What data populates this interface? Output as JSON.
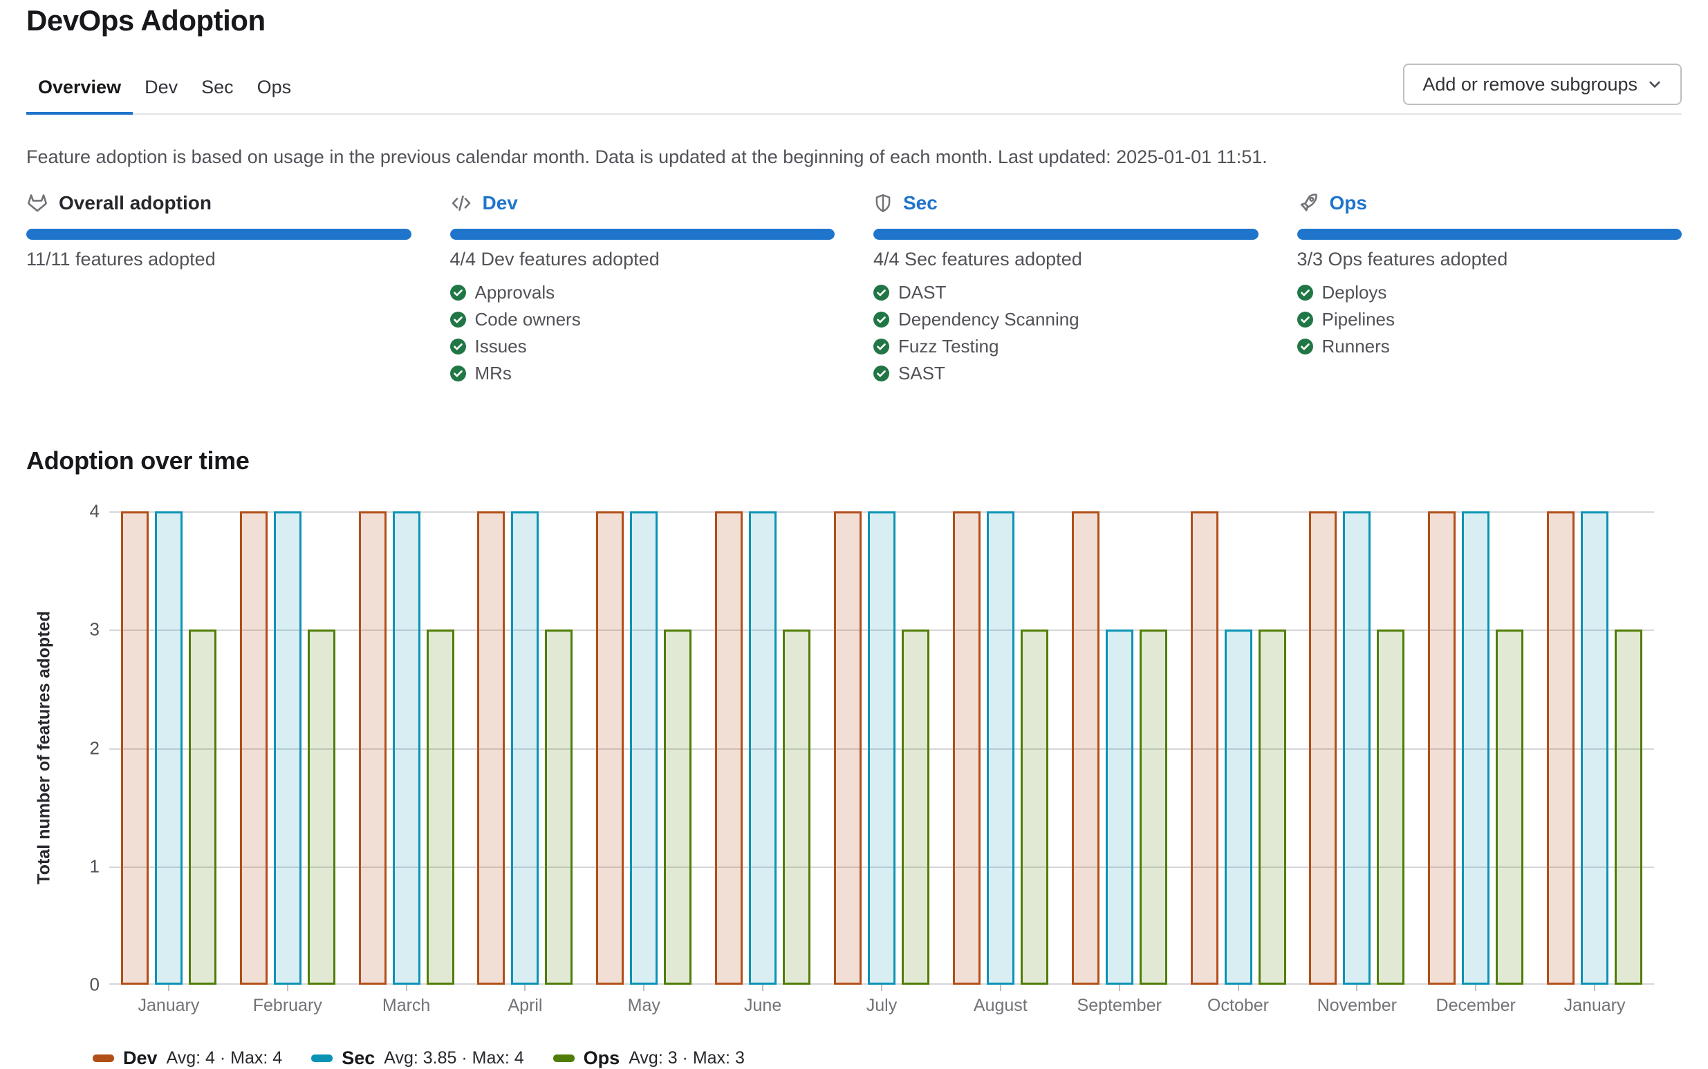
{
  "page": {
    "title": "DevOps Adoption"
  },
  "tabs": [
    {
      "label": "Overview",
      "active": true
    },
    {
      "label": "Dev",
      "active": false
    },
    {
      "label": "Sec",
      "active": false
    },
    {
      "label": "Ops",
      "active": false
    }
  ],
  "toolbar": {
    "add_remove_label": "Add or remove subgroups"
  },
  "info_text": "Feature adoption is based on usage in the previous calendar month. Data is updated at the beginning of each month. Last updated: 2025-01-01 11:51.",
  "colors": {
    "accent": "#1f75cb",
    "success": "#217645"
  },
  "cards": [
    {
      "icon": "tanuki-icon",
      "title": "Overall adoption",
      "progress_percent": 100,
      "summary": "11/11 features adopted",
      "features": []
    },
    {
      "icon": "code-icon",
      "title": "Dev",
      "progress_percent": 100,
      "summary": "4/4 Dev features adopted",
      "features": [
        "Approvals",
        "Code owners",
        "Issues",
        "MRs"
      ]
    },
    {
      "icon": "shield-icon",
      "title": "Sec",
      "progress_percent": 100,
      "summary": "4/4 Sec features adopted",
      "features": [
        "DAST",
        "Dependency Scanning",
        "Fuzz Testing",
        "SAST"
      ]
    },
    {
      "icon": "rocket-icon",
      "title": "Ops",
      "progress_percent": 100,
      "summary": "3/3 Ops features adopted",
      "features": [
        "Deploys",
        "Pipelines",
        "Runners"
      ]
    }
  ],
  "chart_data": {
    "type": "bar",
    "title": "Adoption over time",
    "ylabel": "Total number of features adopted",
    "ylim": [
      0,
      4
    ],
    "yticks": [
      0,
      1,
      2,
      3,
      4
    ],
    "grid": true,
    "legend_position": "bottom",
    "categories": [
      "January",
      "February",
      "March",
      "April",
      "May",
      "June",
      "July",
      "August",
      "September",
      "October",
      "November",
      "December",
      "January"
    ],
    "series": [
      {
        "name": "Dev",
        "values": [
          4,
          4,
          4,
          4,
          4,
          4,
          4,
          4,
          4,
          4,
          4,
          4,
          4
        ],
        "stroke": "#b14f18",
        "fill": "rgba(177,79,24,0.18)",
        "legend_stats": "Avg: 4 · Max: 4"
      },
      {
        "name": "Sec",
        "values": [
          4,
          4,
          4,
          4,
          4,
          4,
          4,
          4,
          3,
          3,
          4,
          4,
          4
        ],
        "stroke": "#0a93b5",
        "fill": "rgba(10,147,181,0.16)",
        "legend_stats": "Avg: 3.85 · Max: 4"
      },
      {
        "name": "Ops",
        "values": [
          3,
          3,
          3,
          3,
          3,
          3,
          3,
          3,
          3,
          3,
          3,
          3,
          3
        ],
        "stroke": "#507d06",
        "fill": "rgba(80,125,6,0.17)",
        "legend_stats": "Avg: 3 · Max: 3"
      }
    ]
  }
}
